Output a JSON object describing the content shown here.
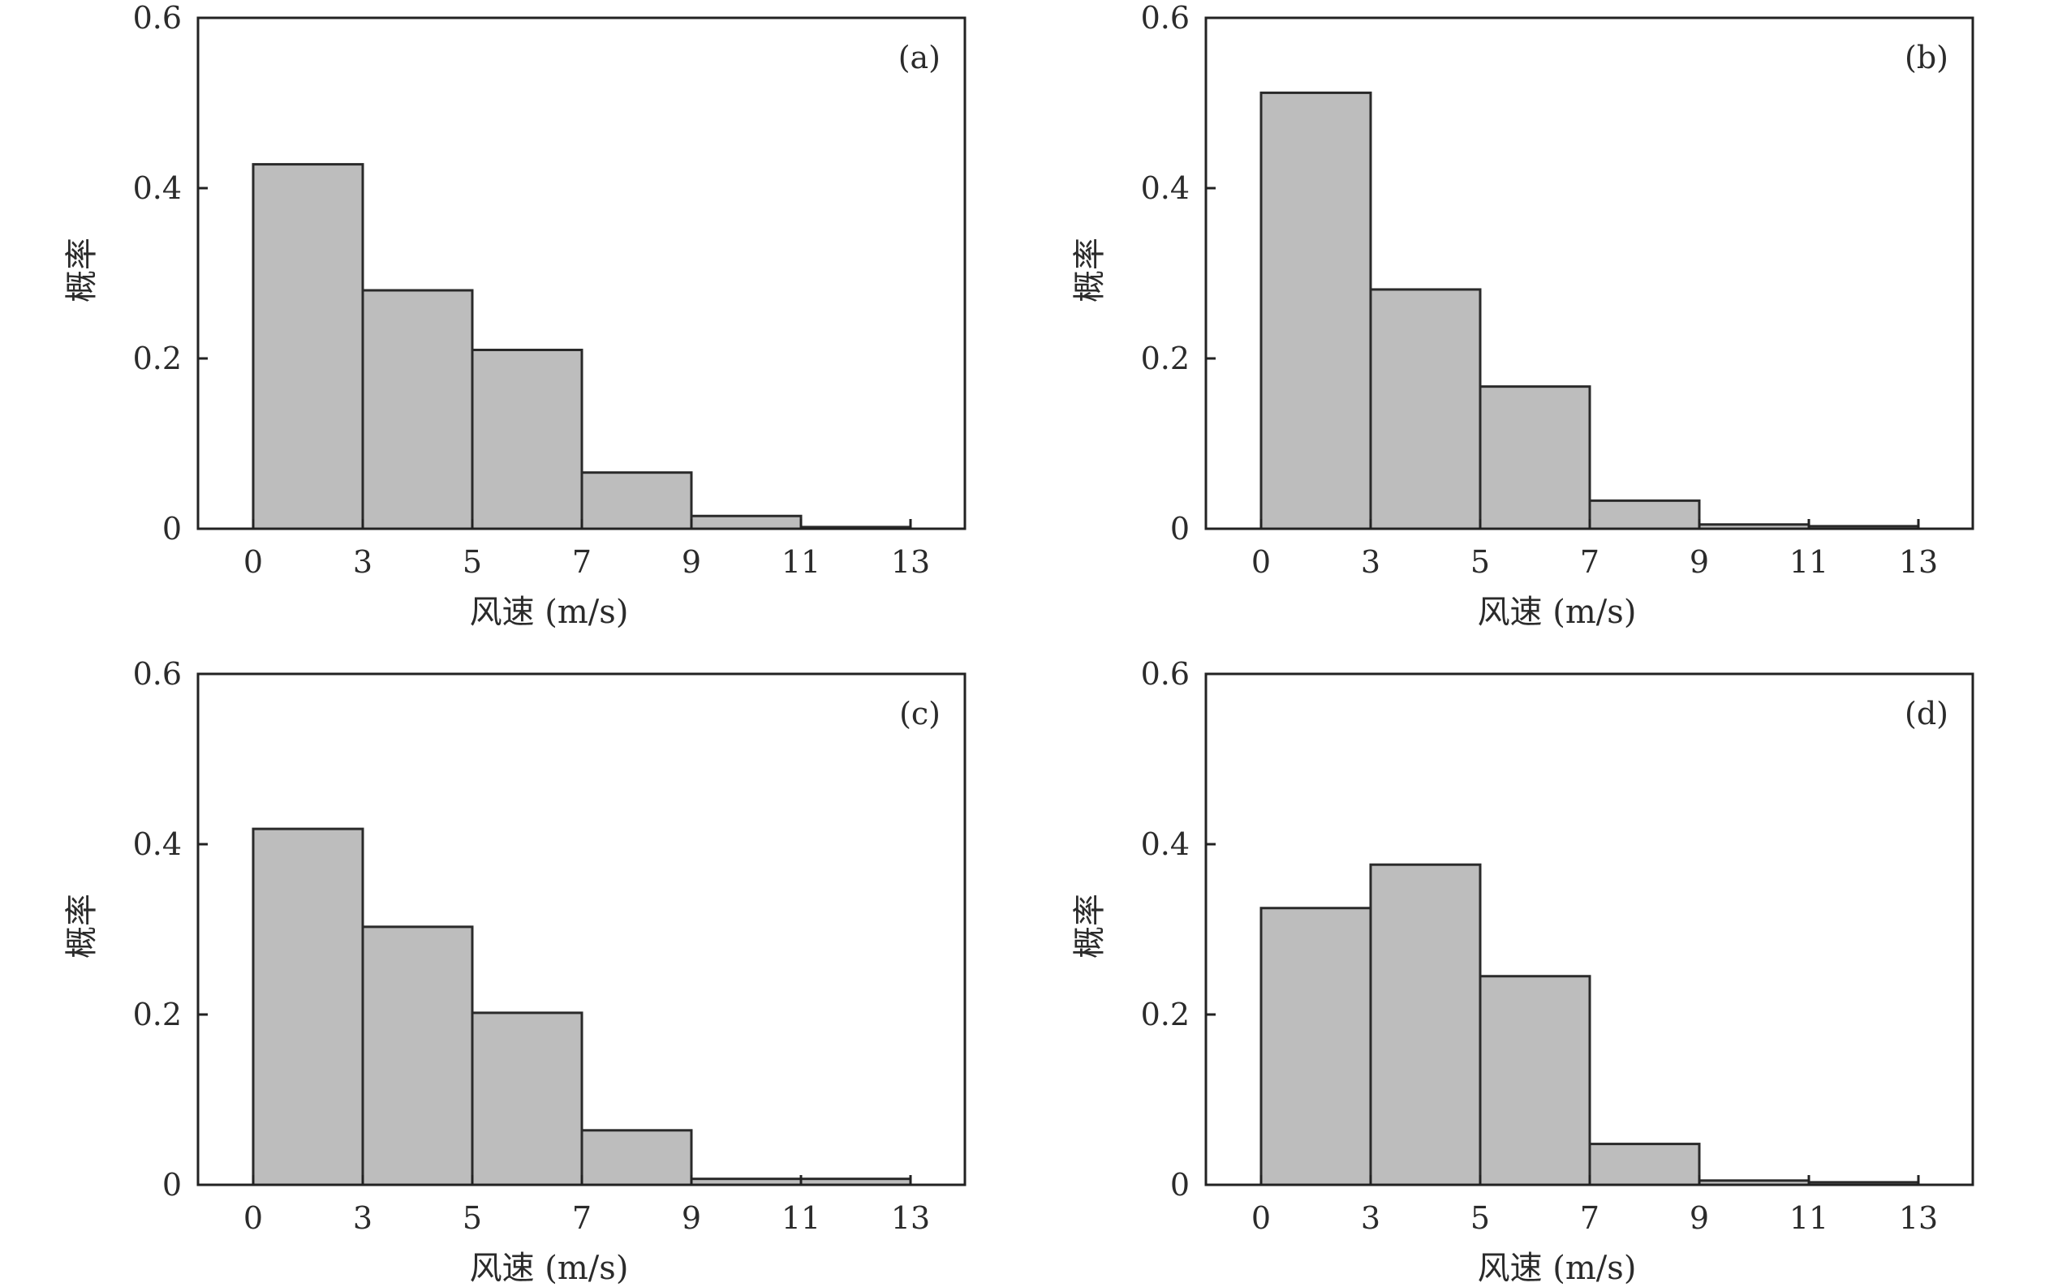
{
  "chart_data": [
    {
      "type": "bar",
      "panel_label": "(a)",
      "xlabel": "风速 (m/s)",
      "ylabel": "概率",
      "bin_edges": [
        0,
        3,
        5,
        7,
        9,
        11,
        13
      ],
      "xticks": [
        "0",
        "3",
        "5",
        "7",
        "9",
        "11",
        "13"
      ],
      "yticks": [
        "0",
        "0.2",
        "0.4",
        "0.6"
      ],
      "ylim": [
        0,
        0.6
      ],
      "values": [
        0.428,
        0.28,
        0.21,
        0.066,
        0.015,
        0.002
      ],
      "grid": false
    },
    {
      "type": "bar",
      "panel_label": "(b)",
      "xlabel": "风速 (m/s)",
      "ylabel": "概率",
      "bin_edges": [
        0,
        3,
        5,
        7,
        9,
        11,
        13
      ],
      "xticks": [
        "0",
        "3",
        "5",
        "7",
        "9",
        "11",
        "13"
      ],
      "yticks": [
        "0",
        "0.2",
        "0.4",
        "0.6"
      ],
      "ylim": [
        0,
        0.6
      ],
      "values": [
        0.512,
        0.281,
        0.167,
        0.033,
        0.005,
        0.003
      ],
      "grid": false
    },
    {
      "type": "bar",
      "panel_label": "(c)",
      "xlabel": "风速 (m/s)",
      "ylabel": "概率",
      "bin_edges": [
        0,
        3,
        5,
        7,
        9,
        11,
        13
      ],
      "xticks": [
        "0",
        "3",
        "5",
        "7",
        "9",
        "11",
        "13"
      ],
      "yticks": [
        "0",
        "0.2",
        "0.4",
        "0.6"
      ],
      "ylim": [
        0,
        0.6
      ],
      "values": [
        0.418,
        0.303,
        0.202,
        0.064,
        0.007,
        0.007
      ],
      "grid": false
    },
    {
      "type": "bar",
      "panel_label": "(d)",
      "xlabel": "风速 (m/s)",
      "ylabel": "概率",
      "bin_edges": [
        0,
        3,
        5,
        7,
        9,
        11,
        13
      ],
      "xticks": [
        "0",
        "3",
        "5",
        "7",
        "9",
        "11",
        "13"
      ],
      "yticks": [
        "0",
        "0.2",
        "0.4",
        "0.6"
      ],
      "ylim": [
        0,
        0.6
      ],
      "values": [
        0.325,
        0.376,
        0.245,
        0.048,
        0.005,
        0.003
      ],
      "grid": false
    }
  ]
}
